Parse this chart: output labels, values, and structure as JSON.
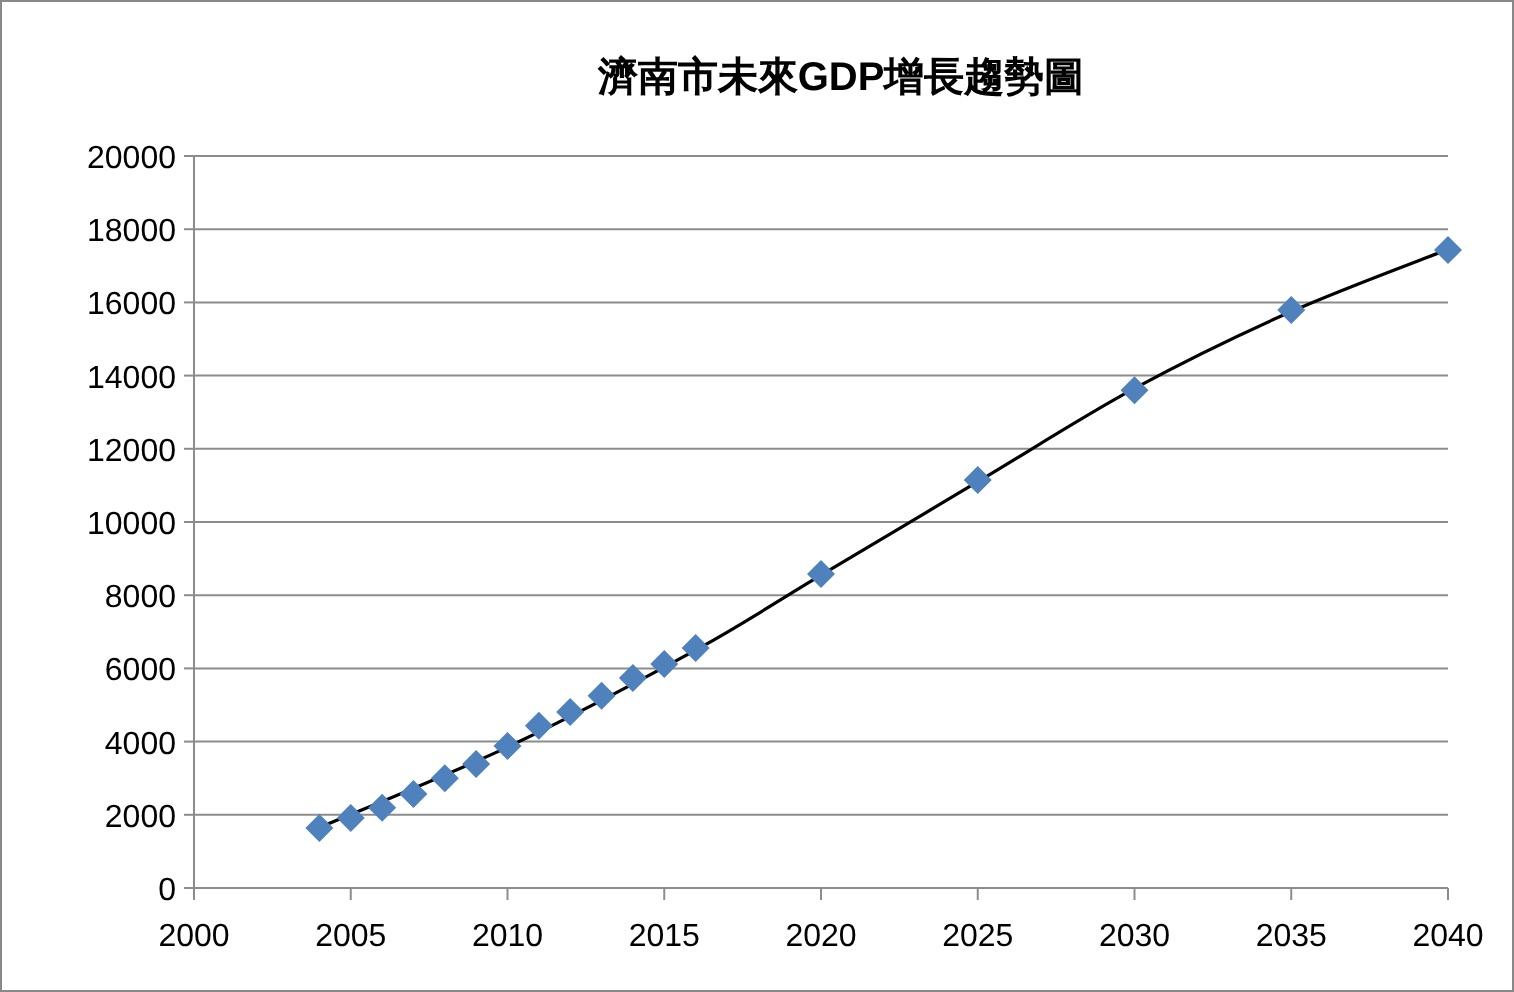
{
  "chart_data": {
    "type": "scatter",
    "title": "濟南市未來GDP增長趨勢圖",
    "xlim": [
      2000,
      2040
    ],
    "xticks": [
      2000,
      2005,
      2010,
      2015,
      2020,
      2025,
      2030,
      2035,
      2040
    ],
    "ylim": [
      0,
      20000
    ],
    "yticks": [
      0,
      2000,
      4000,
      6000,
      8000,
      10000,
      12000,
      14000,
      16000,
      18000,
      20000
    ],
    "grid": "y",
    "series": [
      {
        "color": "#4f81bd",
        "marker": "diamond",
        "x": [
          2004,
          2005,
          2006,
          2007,
          2008,
          2009,
          2010,
          2011,
          2012,
          2013,
          2014,
          2015,
          2016,
          2020,
          2025,
          2030,
          2035,
          2040
        ],
        "values": [
          1640,
          1910,
          2190,
          2570,
          3000,
          3390,
          3880,
          4430,
          4810,
          5250,
          5740,
          6120,
          6560,
          8580,
          11150,
          13600,
          15790,
          17430
        ]
      },
      {
        "type": "line",
        "color": "#000000",
        "line_style": "solid",
        "x": [
          2004,
          2010,
          2016,
          2020,
          2025,
          2030,
          2035,
          2040
        ],
        "values": [
          1650,
          3850,
          6500,
          8550,
          11100,
          13650,
          15750,
          17450
        ]
      }
    ]
  }
}
